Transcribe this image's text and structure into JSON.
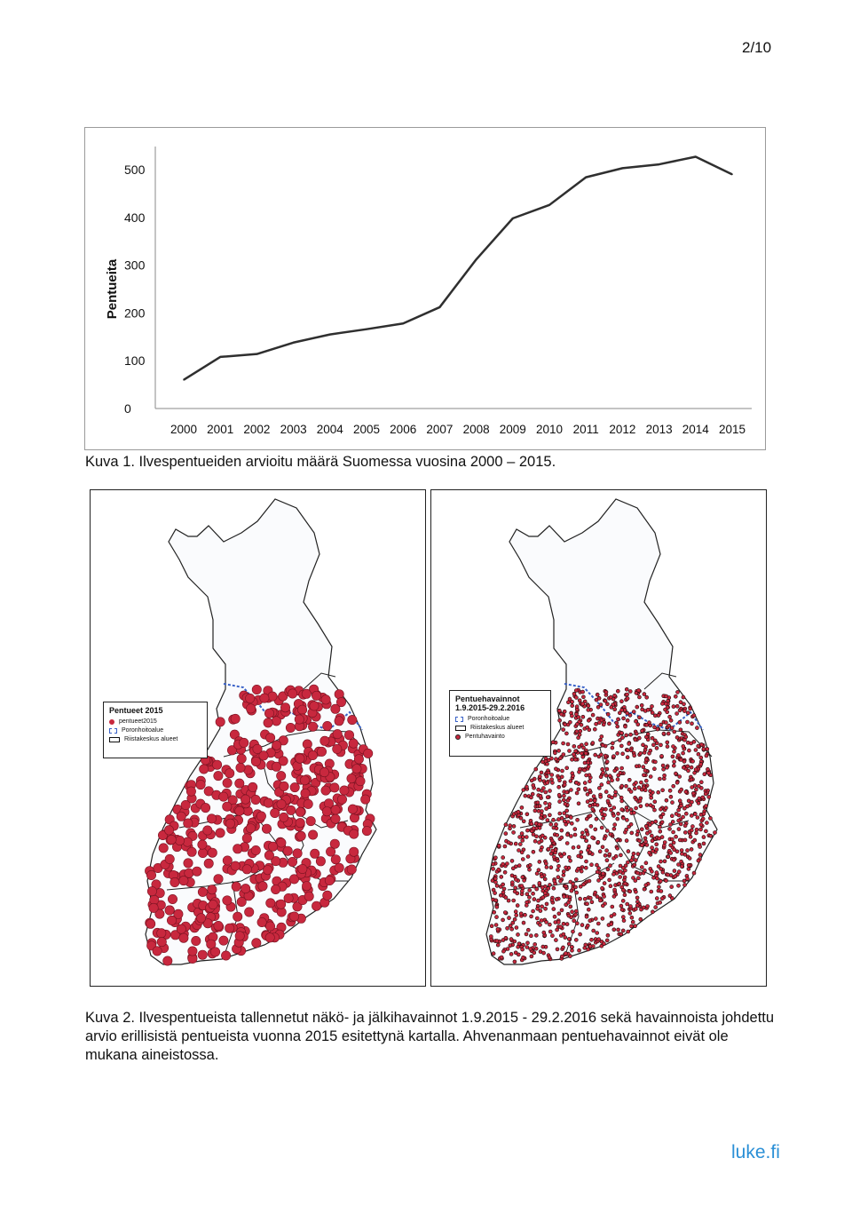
{
  "page_number": "2/10",
  "chart_data": {
    "type": "line",
    "x": [
      "2000",
      "2001",
      "2002",
      "2003",
      "2004",
      "2005",
      "2006",
      "2007",
      "2008",
      "2009",
      "2010",
      "2011",
      "2012",
      "2013",
      "2014",
      "2015"
    ],
    "series": [
      {
        "values": [
          60,
          108,
          114,
          138,
          155,
          166,
          178,
          212,
          312,
          398,
          426,
          484,
          503,
          511,
          527,
          490
        ]
      }
    ],
    "ylabel": "Pentueita",
    "ylim": [
      0,
      500
    ],
    "yticks": [
      "0",
      "100",
      "200",
      "300",
      "400",
      "500"
    ],
    "grid": false,
    "line_color": "#2f2f2f"
  },
  "caption1": "Kuva 1. Ilvespentueiden arvioitu määrä Suomessa vuosina 2000 – 2015.",
  "map_left": {
    "legend_title": "Pentueet 2015",
    "legend_items": [
      "pentueet2015",
      "Poronhoitoalue",
      "Riistakeskus alueet"
    ],
    "marker_color": "#c8283e"
  },
  "map_right": {
    "legend_title_line1": "Pentuehavainnot",
    "legend_title_line2": "1.9.2015-29.2.2016",
    "legend_items": [
      "Poronhoitoalue",
      "Riistakeskus alueet",
      "Pentuhavainto"
    ],
    "marker_color": "#c8283e"
  },
  "caption2": "Kuva 2. Ilvespentueista tallennetut näkö- ja jälkihavainnot 1.9.2015 - 29.2.2016 sekä havainnoista johdettu arvio erillisistä pentueista vuonna 2015 esitettynä kartalla. Ahvenanmaan pentuehavainnot eivät ole mukana aineistossa.",
  "footer_logo": "luke.fi"
}
